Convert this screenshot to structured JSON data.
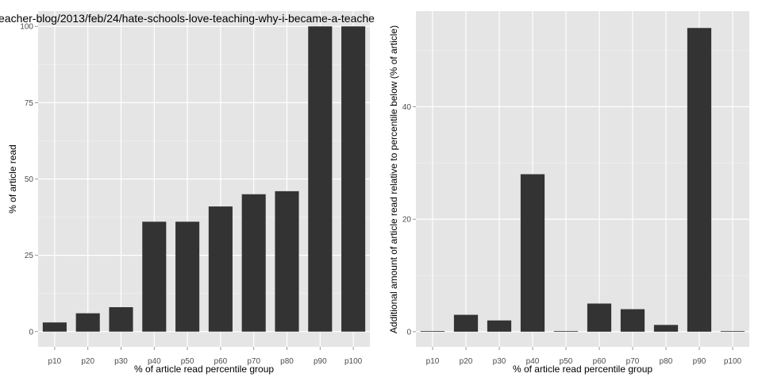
{
  "colors": {
    "panel_bg": "#e5e5e5",
    "grid_major": "#ffffff",
    "grid_minor": "#f2f2f2",
    "bar": "#333333",
    "tick_text": "#4d4d4d"
  },
  "chart_data": [
    {
      "type": "bar",
      "title": "eacher-blog/2013/feb/24/hate-schools-love-teaching-why-i-became-a-teache",
      "xlabel": "% of article read percentile group",
      "ylabel": "% of article read",
      "categories": [
        "p10",
        "p20",
        "p30",
        "p40",
        "p50",
        "p60",
        "p70",
        "p80",
        "p90",
        "p100"
      ],
      "values": [
        3,
        6,
        8,
        36,
        36,
        41,
        45,
        46,
        100,
        100
      ],
      "ylim": [
        -5,
        105
      ],
      "yticks": [
        0,
        25,
        50,
        75,
        100
      ],
      "grid": true,
      "legend": "none"
    },
    {
      "type": "bar",
      "title": "",
      "xlabel": "% of article read percentile group",
      "ylabel": "Additional amount of article read relative to percentile below (% of article)",
      "categories": [
        "p10",
        "p20",
        "p30",
        "p40",
        "p50",
        "p60",
        "p70",
        "p80",
        "p90",
        "p100"
      ],
      "values": [
        0,
        3,
        2,
        28,
        0,
        5,
        4,
        1.2,
        54,
        0
      ],
      "ylim": [
        -2.7,
        57
      ],
      "yticks": [
        0,
        20,
        40
      ],
      "grid": true,
      "legend": "none"
    }
  ]
}
